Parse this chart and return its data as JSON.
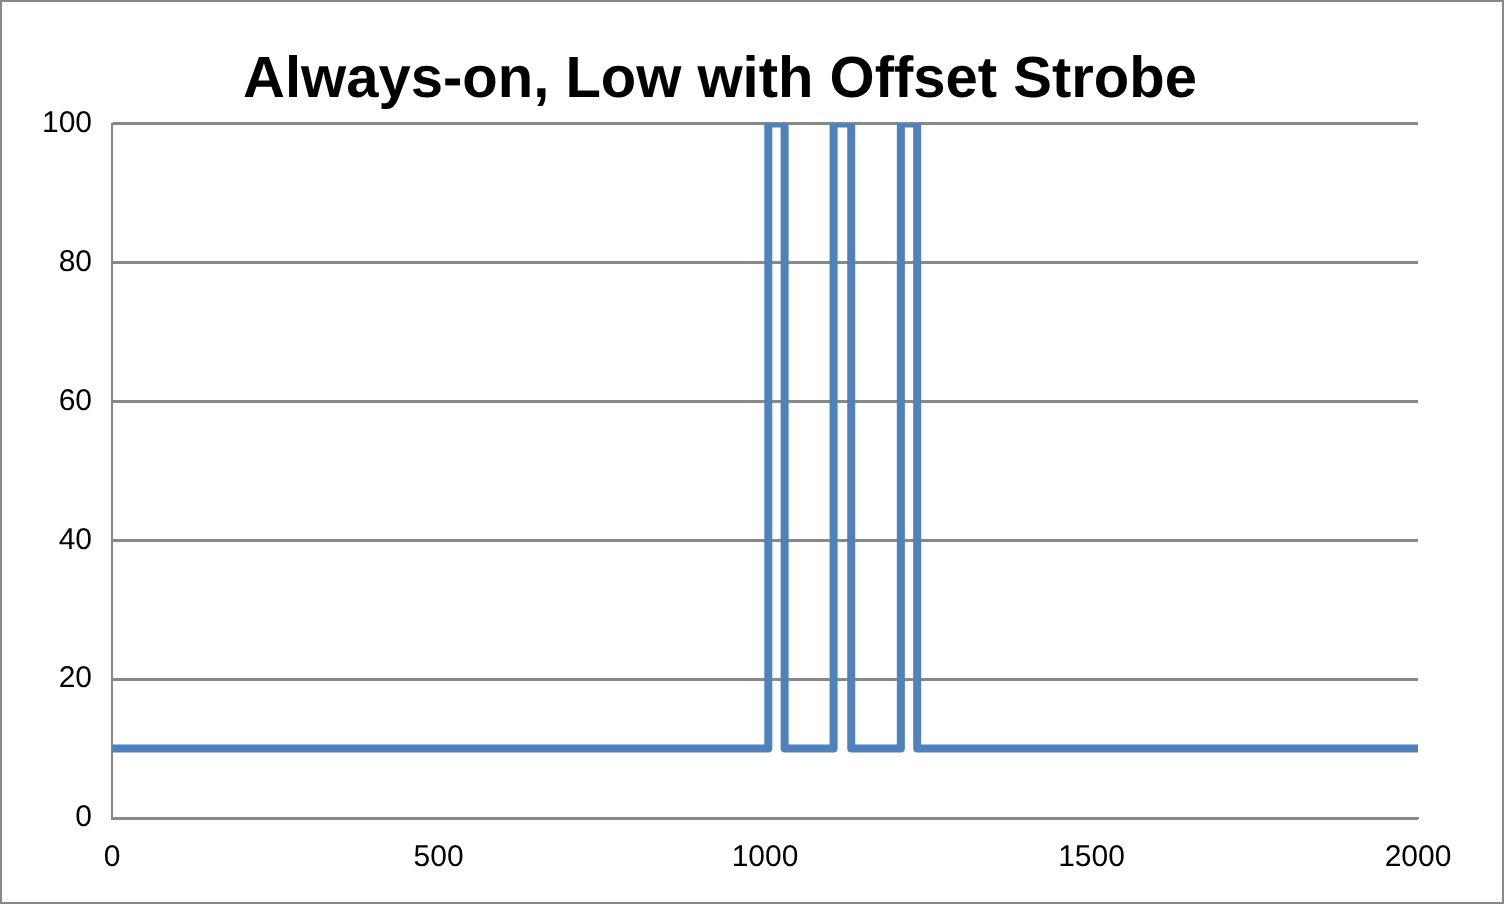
{
  "chart_data": {
    "type": "line",
    "title": "Always-on, Low with Offset Strobe",
    "series": [
      {
        "color": "#4f81bd",
        "x": [
          0,
          1005,
          1005,
          1030,
          1030,
          1105,
          1105,
          1132,
          1132,
          1208,
          1208,
          1233,
          1233,
          2000
        ],
        "values": [
          10,
          10,
          100,
          100,
          10,
          10,
          100,
          100,
          10,
          10,
          100,
          100,
          10,
          10
        ]
      }
    ],
    "xlim": [
      0,
      2000
    ],
    "xticks": [
      0,
      500,
      1000,
      1500,
      2000
    ],
    "ylim": [
      0,
      100
    ],
    "yticks": [
      0,
      20,
      40,
      60,
      80,
      100
    ],
    "grid": "y",
    "legend": false,
    "marker": "none",
    "line_style": "solid"
  }
}
